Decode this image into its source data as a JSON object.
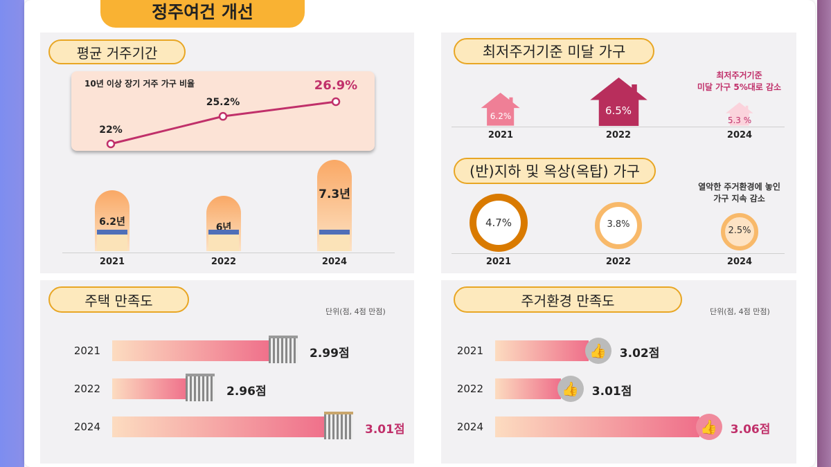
{
  "title": "정주여건 개선",
  "colors": {
    "accent": "#f9b233",
    "line": "#c0306a",
    "house_dark": "#b82e5c",
    "house_mid": "#ef7f96",
    "house_light": "#fbd3dc",
    "ring_dark": "#d97a00",
    "ring_light": "#f8b96a"
  },
  "panels": {
    "residence": {
      "title": "평균 거주기간",
      "sub_title": "10년 이상 장기 거주 가구 비율"
    },
    "substandard": {
      "title": "최저주거기준 미달 가구",
      "note": [
        "최저주거기준",
        "미달  가구 5%대로 감소"
      ]
    },
    "basement": {
      "title": "(반)지하 및 옥상(옥탑) 가구",
      "note": [
        "열악한 주거환경에 놓인",
        "가구 지속 감소"
      ]
    },
    "housing_sat": {
      "title": "주택 만족도",
      "unit": "단위(점, 4점 만점)"
    },
    "env_sat": {
      "title": "주거환경 만족도",
      "unit": "단위(점, 4점 만점)"
    }
  },
  "chart_data": [
    {
      "type": "line",
      "title": "10년 이상 장기 거주 가구 비율",
      "categories": [
        "2021",
        "2022",
        "2024"
      ],
      "values": [
        22,
        25.2,
        26.9
      ],
      "labels": [
        "22%",
        "25.2%",
        "26.9%"
      ]
    },
    {
      "type": "bar",
      "title": "평균 거주기간",
      "categories": [
        "2021",
        "2022",
        "2024"
      ],
      "values": [
        6.2,
        6,
        7.3
      ],
      "labels": [
        "6.2년",
        "6년",
        "7.3년"
      ]
    },
    {
      "type": "bar",
      "title": "최저주거기준 미달 가구",
      "categories": [
        "2021",
        "2022",
        "2024"
      ],
      "values": [
        6.2,
        6.5,
        5.3
      ],
      "labels": [
        "6.2%",
        "6.5%",
        "5.3 %"
      ]
    },
    {
      "type": "bar",
      "title": "(반)지하 및 옥상(옥탑) 가구",
      "categories": [
        "2021",
        "2022",
        "2024"
      ],
      "values": [
        4.7,
        3.8,
        2.5
      ],
      "labels": [
        "4.7%",
        "3.8%",
        "2.5%"
      ]
    },
    {
      "type": "bar",
      "title": "주택 만족도",
      "categories": [
        "2021",
        "2022",
        "2024"
      ],
      "values": [
        2.99,
        2.96,
        3.01
      ],
      "labels": [
        "2.99점",
        "2.96점",
        "3.01점"
      ]
    },
    {
      "type": "bar",
      "title": "주거환경 만족도",
      "categories": [
        "2021",
        "2022",
        "2024"
      ],
      "values": [
        3.02,
        3.01,
        3.06
      ],
      "labels": [
        "3.02점",
        "3.01점",
        "3.06점"
      ]
    }
  ]
}
